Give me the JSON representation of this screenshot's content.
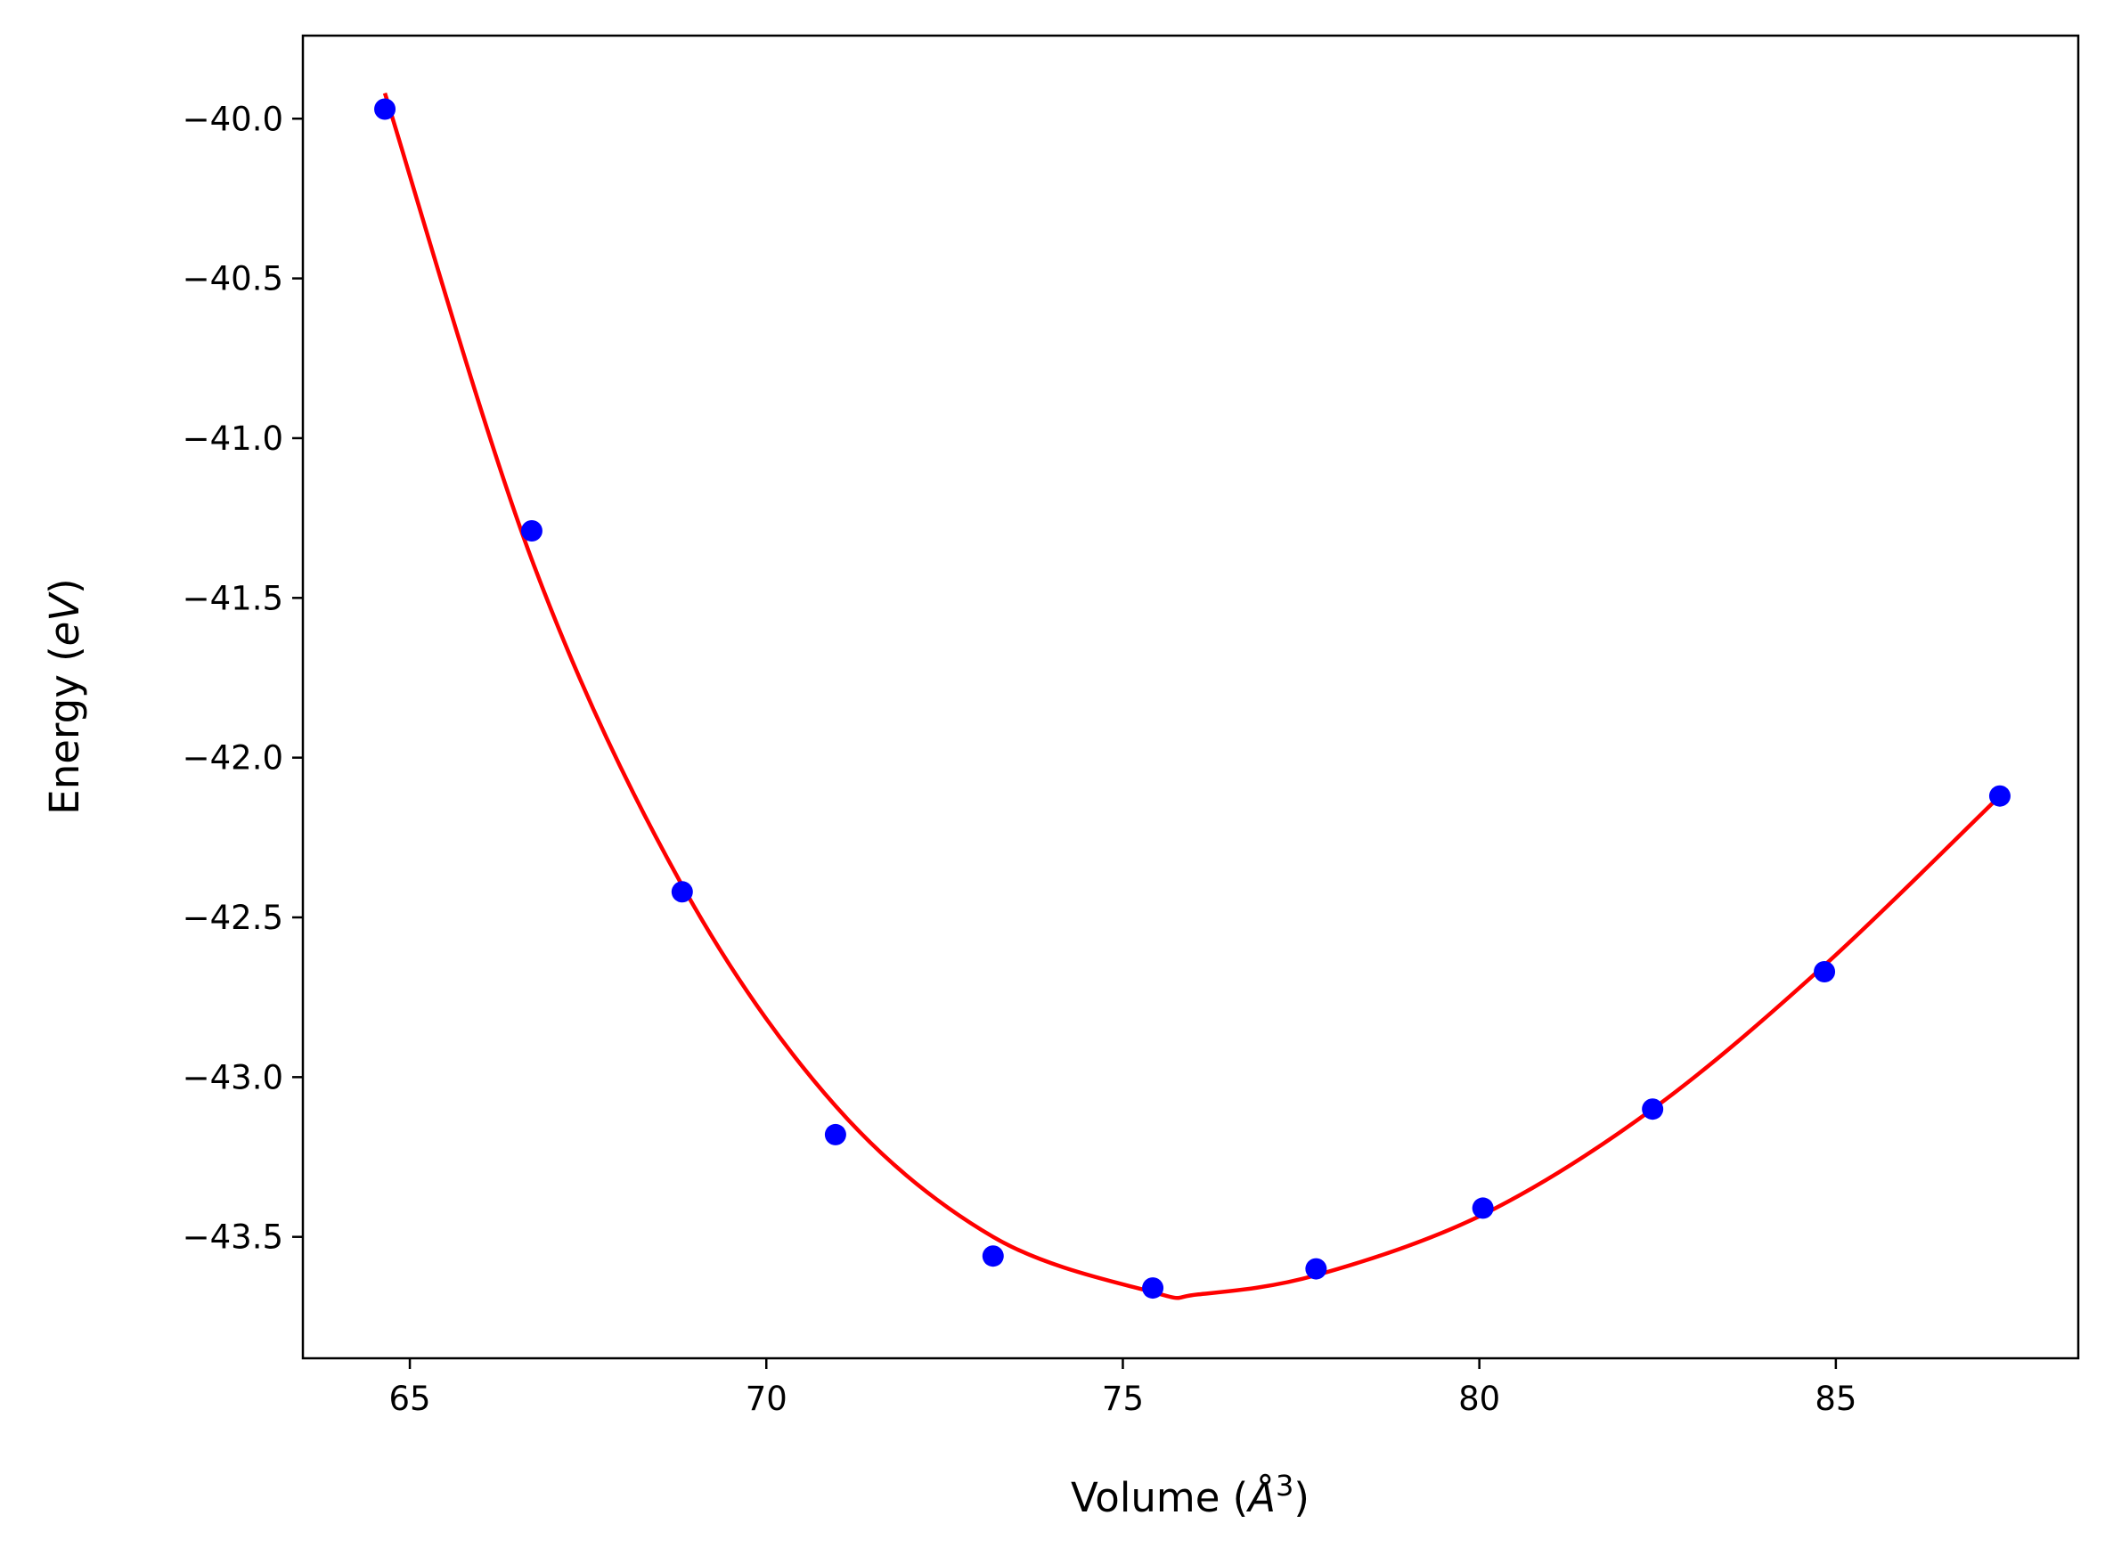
{
  "chart_data": {
    "type": "scatter",
    "xlabel": "Volume (Å³)",
    "ylabel": "Energy (eV)",
    "xlabel_parts": {
      "prefix": "Volume (",
      "symbol": "Å",
      "sup": "3",
      "suffix": ")"
    },
    "ylabel_parts": {
      "prefix": "Energy (",
      "symbol": "eV",
      "suffix": ")"
    },
    "xlim": [
      63.5,
      88.4
    ],
    "ylim": [
      -43.88,
      -39.74
    ],
    "x_ticks": [
      65,
      70,
      75,
      80,
      85
    ],
    "x_tick_labels": [
      "65",
      "70",
      "75",
      "80",
      "85"
    ],
    "y_ticks": [
      -40.0,
      -40.5,
      -41.0,
      -41.5,
      -42.0,
      -42.5,
      -43.0,
      -43.5
    ],
    "y_tick_labels": [
      "−40.0",
      "−40.5",
      "−41.0",
      "−41.5",
      "−42.0",
      "−42.5",
      "−43.0",
      "−43.5"
    ],
    "grid": false,
    "series": [
      {
        "kind": "points",
        "color": "#0000ff",
        "x": [
          64.65,
          66.71,
          68.82,
          70.97,
          73.18,
          75.42,
          77.71,
          80.05,
          82.43,
          84.84,
          87.3
        ],
        "y": [
          -39.97,
          -41.29,
          -42.42,
          -43.18,
          -43.56,
          -43.66,
          -43.6,
          -43.41,
          -43.1,
          -42.67,
          -42.12
        ]
      },
      {
        "kind": "fit-curve",
        "color": "#ff0000",
        "x": [
          64.65,
          66.71,
          68.82,
          70.97,
          73.18,
          75.42,
          76.06,
          77.71,
          80.05,
          82.43,
          84.84,
          87.3
        ],
        "y": [
          -39.92,
          -41.38,
          -42.4,
          -43.09,
          -43.5,
          -43.673,
          -43.68,
          -43.62,
          -43.43,
          -43.1,
          -42.65,
          -42.12
        ]
      }
    ]
  }
}
